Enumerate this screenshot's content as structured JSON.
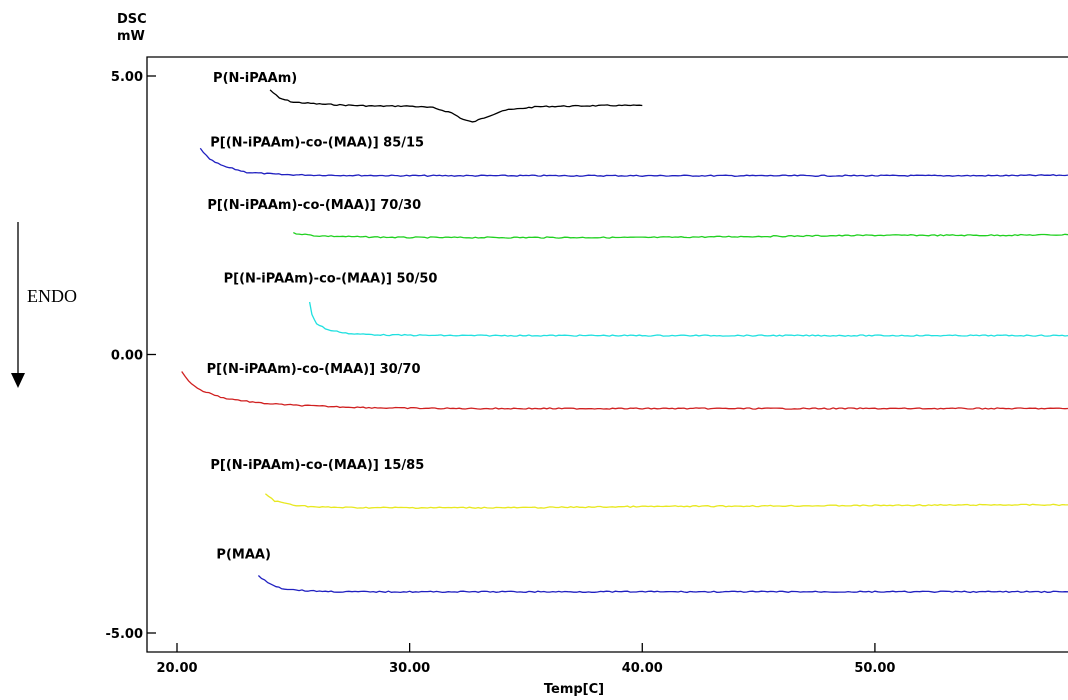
{
  "chart_data": {
    "type": "line",
    "ylabel_line1": "DSC",
    "ylabel_line2": "mW",
    "xlabel": "Temp[C]",
    "annotation": "ENDO",
    "xlim": [
      20.0,
      58.3
    ],
    "ylim": [
      -5.0,
      5.0
    ],
    "x_ticks": [
      20,
      30,
      40,
      50
    ],
    "x_tick_labels": [
      "20.00",
      "30.00",
      "40.00",
      "50.00"
    ],
    "y_ticks": [
      5,
      0,
      -5
    ],
    "y_tick_labels": [
      "5.00",
      "0.00",
      "-5.00"
    ],
    "grid": false,
    "legend": "labels placed above each curve",
    "series": [
      {
        "name": "P(N-iPAAm)",
        "color": "#000000",
        "x": [
          24.0,
          24.4,
          25.0,
          26.0,
          27.0,
          28.5,
          30.0,
          31.0,
          31.8,
          32.3,
          32.7,
          33.2,
          34.0,
          35.5,
          37.0,
          38.5,
          40.0
        ],
        "y": [
          4.75,
          4.6,
          4.53,
          4.5,
          4.48,
          4.46,
          4.46,
          4.43,
          4.34,
          4.22,
          4.17,
          4.25,
          4.38,
          4.45,
          4.46,
          4.47,
          4.47
        ]
      },
      {
        "name": "P[(N-iPAAm)-co-(MAA)] 85/15",
        "color": "#2020c0",
        "x": [
          21.0,
          21.4,
          22.0,
          23.0,
          24.5,
          26.0,
          30.0,
          35.0,
          40.0,
          45.0,
          50.0,
          55.0,
          58.3
        ],
        "y": [
          3.7,
          3.5,
          3.38,
          3.27,
          3.23,
          3.22,
          3.21,
          3.21,
          3.21,
          3.21,
          3.21,
          3.21,
          3.22
        ]
      },
      {
        "name": "P[(N-iPAAm)-co-(MAA)] 70/30",
        "color": "#20d020",
        "x": [
          25.0,
          26.0,
          28.0,
          30.0,
          35.0,
          40.0,
          45.0,
          50.0,
          55.0,
          58.3
        ],
        "y": [
          2.18,
          2.13,
          2.11,
          2.1,
          2.1,
          2.1,
          2.12,
          2.14,
          2.14,
          2.15
        ]
      },
      {
        "name": "P[(N-iPAAm)-co-(MAA)] 50/50",
        "color": "#20e0e0",
        "x": [
          25.7,
          25.8,
          26.0,
          26.5,
          27.5,
          29.0,
          32.0,
          35.0,
          40.0,
          45.0,
          50.0,
          55.0,
          58.3
        ],
        "y": [
          0.95,
          0.72,
          0.55,
          0.44,
          0.37,
          0.35,
          0.34,
          0.34,
          0.34,
          0.34,
          0.34,
          0.34,
          0.34
        ]
      },
      {
        "name": "P[(N-iPAAm)-co-(MAA)] 30/70",
        "color": "#d02020",
        "x": [
          20.2,
          20.5,
          21.0,
          22.0,
          23.5,
          25.0,
          27.0,
          29.0,
          32.0,
          35.0,
          40.0,
          45.0,
          50.0,
          55.0,
          58.3
        ],
        "y": [
          -0.3,
          -0.48,
          -0.64,
          -0.78,
          -0.87,
          -0.91,
          -0.94,
          -0.96,
          -0.97,
          -0.97,
          -0.97,
          -0.97,
          -0.97,
          -0.97,
          -0.97
        ]
      },
      {
        "name": "P[(N-iPAAm)-co-(MAA)] 15/85",
        "color": "#e8e820",
        "x": [
          23.8,
          24.2,
          25.0,
          26.0,
          28.0,
          30.0,
          35.0,
          40.0,
          45.0,
          50.0,
          55.0,
          58.3
        ],
        "y": [
          -2.5,
          -2.63,
          -2.7,
          -2.74,
          -2.75,
          -2.75,
          -2.75,
          -2.73,
          -2.72,
          -2.71,
          -2.7,
          -2.7
        ]
      },
      {
        "name": "P(MAA)",
        "color": "#2020c0",
        "x": [
          23.5,
          23.9,
          24.5,
          25.5,
          27.0,
          30.0,
          35.0,
          40.0,
          45.0,
          50.0,
          55.0,
          58.3
        ],
        "y": [
          -3.97,
          -4.1,
          -4.2,
          -4.24,
          -4.26,
          -4.26,
          -4.26,
          -4.26,
          -4.26,
          -4.26,
          -4.26,
          -4.26
        ]
      }
    ]
  }
}
